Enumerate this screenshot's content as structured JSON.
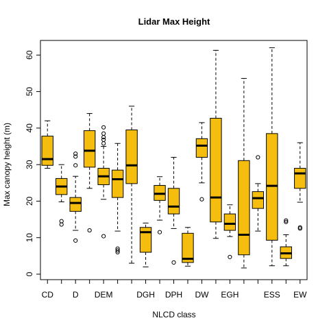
{
  "chart_data": {
    "type": "box",
    "title": "Lidar Max Height",
    "xlabel": "NLCD class",
    "ylabel": "Max canopy height (m)",
    "ylim": [
      -1.5,
      64
    ],
    "yticks": [
      0,
      10,
      20,
      30,
      40,
      50,
      60
    ],
    "tick_labels": [
      "CD",
      "D",
      "DEM",
      "DGH",
      "DPH",
      "DW",
      "EGH",
      "ESS",
      "EW"
    ],
    "tick_positions": [
      1,
      3,
      5,
      8,
      10,
      12,
      14,
      17,
      19
    ],
    "grid": false,
    "colors": {
      "box_fill": "#F5BE0F",
      "line": "#000000"
    },
    "boxes": [
      {
        "pos": 1,
        "whisker_low": 29,
        "q1": 29.8,
        "median": 31.5,
        "q3": 37.8,
        "whisker_high": 42,
        "outliers": []
      },
      {
        "pos": 2,
        "whisker_low": 19.8,
        "q1": 21.8,
        "median": 24,
        "q3": 26.2,
        "whisker_high": 30,
        "outliers": [
          14.5,
          13.6
        ]
      },
      {
        "pos": 3,
        "whisker_low": 12,
        "q1": 17.2,
        "median": 19.5,
        "q3": 21,
        "whisker_high": 26.8,
        "outliers": [
          33,
          32.2,
          29.8,
          9.2
        ]
      },
      {
        "pos": 4,
        "whisker_low": 23.5,
        "q1": 29.3,
        "median": 33.8,
        "q3": 39.3,
        "whisker_high": 44,
        "outliers": [
          12
        ]
      },
      {
        "pos": 5,
        "whisker_low": 20.5,
        "q1": 24.5,
        "median": 26.8,
        "q3": 29,
        "whisker_high": 35,
        "outliers": [
          40.2,
          38.5,
          37.5,
          36.8,
          35.8,
          10.4
        ]
      },
      {
        "pos": 6,
        "whisker_low": 11.8,
        "q1": 21,
        "median": 26,
        "q3": 28.5,
        "whisker_high": 35.8,
        "outliers": [
          7,
          6.5,
          6
        ]
      },
      {
        "pos": 7,
        "whisker_low": 3,
        "q1": 24.8,
        "median": 29.8,
        "q3": 39.5,
        "whisker_high": 46,
        "outliers": []
      },
      {
        "pos": 8,
        "whisker_low": 2,
        "q1": 6,
        "median": 11.5,
        "q3": 12.8,
        "whisker_high": 14,
        "outliers": []
      },
      {
        "pos": 9,
        "whisker_low": 14.8,
        "q1": 20.2,
        "median": 22,
        "q3": 24.3,
        "whisker_high": 26.7,
        "outliers": [
          11.5
        ]
      },
      {
        "pos": 10,
        "whisker_low": 12.5,
        "q1": 16.5,
        "median": 18.5,
        "q3": 23.5,
        "whisker_high": 32,
        "outliers": [
          3.2
        ]
      },
      {
        "pos": 11,
        "whisker_low": 2.2,
        "q1": 3.2,
        "median": 4.2,
        "q3": 11.2,
        "whisker_high": 12.8,
        "outliers": []
      },
      {
        "pos": 12,
        "whisker_low": 25,
        "q1": 32,
        "median": 35.2,
        "q3": 37.1,
        "whisker_high": 41.5,
        "outliers": [
          20.5
        ]
      },
      {
        "pos": 13,
        "whisker_low": 9.8,
        "q1": 14.3,
        "median": 21,
        "q3": 42.7,
        "whisker_high": 61.3,
        "outliers": []
      },
      {
        "pos": 14,
        "whisker_low": 10.3,
        "q1": 12,
        "median": 13.8,
        "q3": 16.5,
        "whisker_high": 19,
        "outliers": [
          4.7
        ]
      },
      {
        "pos": 15,
        "whisker_low": 1.7,
        "q1": 5.3,
        "median": 10.8,
        "q3": 31.1,
        "whisker_high": 53.6,
        "outliers": []
      },
      {
        "pos": 16,
        "whisker_low": 11.8,
        "q1": 18,
        "median": 20.8,
        "q3": 22.6,
        "whisker_high": 24.8,
        "outliers": [
          32
        ]
      },
      {
        "pos": 17,
        "whisker_low": 2.3,
        "q1": 9.3,
        "median": 24.2,
        "q3": 38.5,
        "whisker_high": 62,
        "outliers": []
      },
      {
        "pos": 18,
        "whisker_low": 2.3,
        "q1": 4.3,
        "median": 5.7,
        "q3": 7.5,
        "whisker_high": 10.8,
        "outliers": [
          14.7,
          14.3
        ]
      },
      {
        "pos": 19,
        "whisker_low": 19.7,
        "q1": 23.5,
        "median": 27.6,
        "q3": 29,
        "whisker_high": 36,
        "outliers": [
          12.8,
          12.5
        ]
      }
    ]
  }
}
